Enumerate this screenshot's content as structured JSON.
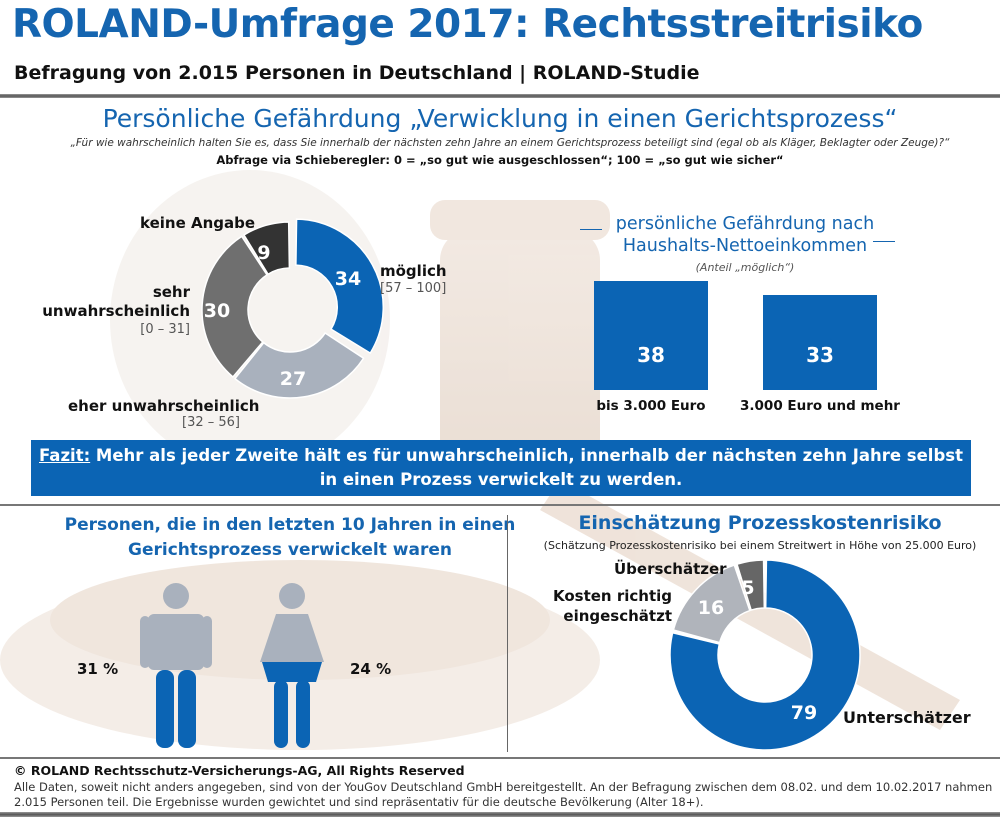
{
  "header": {
    "title": "ROLAND-Umfrage 2017: Rechtsstreitrisiko",
    "subtitle": "Befragung von 2.015 Personen in Deutschland | ROLAND-Studie"
  },
  "section": {
    "title": "Persönliche Gefährdung „Verwicklung in einen Gerichtsprozess“",
    "question": "„Für wie wahrscheinlich halten Sie es, dass Sie innerhalb der nächsten zehn Jahre an einem Gerichtsprozess beteiligt sind (egal ob als Kläger, Beklagter oder Zeuge)?“",
    "method": "Abfrage via Schieberegler: 0 = „so gut wie ausgeschlossen“; 100 = „so gut wie sicher“"
  },
  "fazit": {
    "label": "Fazit:",
    "text": " Mehr als jeder Zweite hält es für unwahrscheinlich, innerhalb der nächsten zehn Jahre selbst in einen Prozess verwickelt zu werden."
  },
  "persons": {
    "title": "Personen, die in den letzten 10 Jahren in einen Gerichtsprozess verwickelt waren",
    "men": "31 %",
    "women": "24 %"
  },
  "footer": {
    "copyright": "© ROLAND Rechtsschutz-Versicherungs-AG, All Rights Reserved",
    "note": "Alle Daten, soweit nicht anders angegeben, sind von der YouGov Deutschland GmbH bereitgestellt. An der Befragung zwischen dem 08.02. und dem 10.02.2017 nahmen 2.015 Personen teil. Die Ergebnisse wurden gewichtet und sind repräsentativ für die deutsche Bevölkerung (Alter 18+)."
  },
  "colors": {
    "blue": "#0b64b4",
    "title_blue": "#1565b0",
    "light_gray": "#a9b1bd",
    "mid_gray": "#6f6f6f",
    "dark_gray": "#333333",
    "cost_gray": "#b0b4bb",
    "cost_dark": "#666666"
  },
  "chart_data": [
    {
      "type": "pie",
      "style": "donut",
      "slices": [
        {
          "label": "möglich",
          "range": "[57 – 100]",
          "value": 34,
          "color": "#0b64b4"
        },
        {
          "label": "eher unwahrscheinlich",
          "range": "[32 – 56]",
          "value": 27,
          "color": "#a9b1bd"
        },
        {
          "label": "sehr unwahrscheinlich",
          "range": "[0 – 31]",
          "value": 30,
          "color": "#6f6f6f"
        },
        {
          "label": "keine Angabe",
          "range": "",
          "value": 9,
          "color": "#333333"
        }
      ]
    },
    {
      "type": "bar",
      "title": "persönliche Gefährdung nach Haushalts-Nettoeinkommen",
      "subtitle": "(Anteil „möglich“)",
      "categories": [
        "bis 3.000 Euro",
        "3.000 Euro und mehr"
      ],
      "values": [
        38,
        33
      ]
    },
    {
      "type": "pie",
      "style": "donut",
      "title": "Einschätzung Prozesskostenrisiko",
      "subtitle": "(Schätzung Prozesskostenrisiko bei einem Streitwert in Höhe von 25.000 Euro)",
      "slices": [
        {
          "label": "Unterschätzer",
          "value": 79,
          "color": "#0b64b4"
        },
        {
          "label": "Kosten richtig eingeschätzt",
          "value": 16,
          "color": "#b0b4bb"
        },
        {
          "label": "Überschätzer",
          "value": 5,
          "color": "#666666"
        }
      ]
    }
  ]
}
